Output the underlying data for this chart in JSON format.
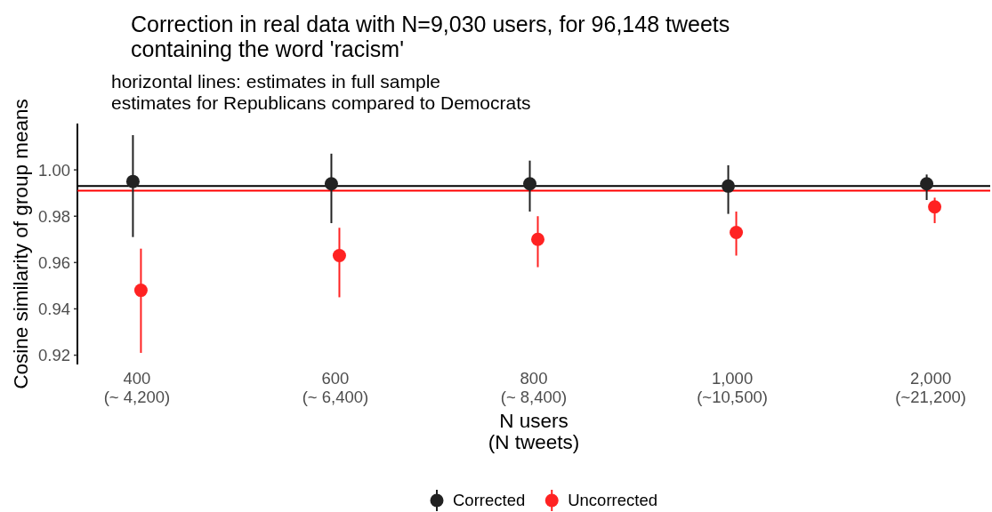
{
  "chart_data": {
    "type": "scatter",
    "title": "Correction in real data with N=9,030 users, for 96,148 tweets\ncontaining the word 'racism'",
    "subtitle": "horizontal lines: estimates in full sample\nestimates for Republicans compared to Democrats",
    "xlabel": "N users\n(N tweets)",
    "ylabel": "Cosine similarity of group means",
    "categories": [
      "400\n(~ 4,200)",
      "600\n(~ 6,400)",
      "800\n(~ 8,400)",
      "1,000\n(~10,500)",
      "2,000\n(~21,200)"
    ],
    "ylim": [
      0.916,
      1.02
    ],
    "yticks": [
      0.92,
      0.94,
      0.96,
      0.98,
      {
        "value": 1,
        "label": "1.00"
      }
    ],
    "series": [
      {
        "name": "Corrected",
        "color": "#222222",
        "values": [
          0.995,
          0.994,
          0.994,
          0.993,
          0.994
        ],
        "errors": [
          [
            0.971,
            1.015
          ],
          [
            0.977,
            1.007
          ],
          [
            0.982,
            1.004
          ],
          [
            0.981,
            1.002
          ],
          [
            0.987,
            0.998
          ]
        ]
      },
      {
        "name": "Uncorrected",
        "color": "#ff2222",
        "values": [
          0.948,
          0.963,
          0.97,
          0.973,
          0.984
        ],
        "errors": [
          [
            0.921,
            0.966
          ],
          [
            0.945,
            0.975
          ],
          [
            0.958,
            0.98
          ],
          [
            0.963,
            0.982
          ],
          [
            0.977,
            0.988
          ]
        ]
      }
    ],
    "ref_lines": [
      {
        "axis": "y",
        "value": 0.993,
        "color": "#000000"
      },
      {
        "axis": "y",
        "value": 0.991,
        "color": "#ff0000"
      }
    ],
    "legend": "bottom",
    "marker": "circle"
  }
}
